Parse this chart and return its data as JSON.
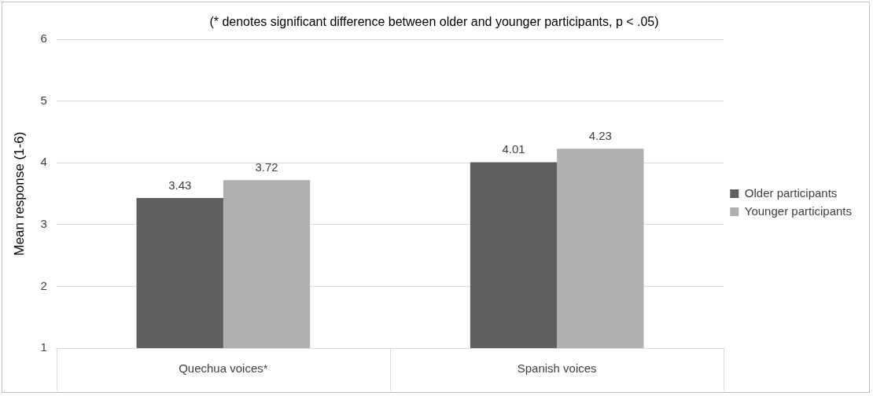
{
  "chart_data": {
    "type": "bar",
    "title": "(* denotes significant difference between older and younger participants, p < .05)",
    "ylabel": "Mean response (1-6)",
    "categories": [
      "Quechua voices*",
      "Spanish voices"
    ],
    "series": [
      {
        "name": "Older participants",
        "color": "#5f5f5f",
        "values": [
          3.43,
          4.01
        ]
      },
      {
        "name": "Younger participants",
        "color": "#b0b0b0",
        "values": [
          3.72,
          4.23
        ]
      }
    ],
    "ylim": [
      1,
      6
    ],
    "yticks": [
      1,
      2,
      3,
      4,
      5,
      6
    ],
    "grid": "y",
    "legend": "right",
    "data_labels": true
  }
}
